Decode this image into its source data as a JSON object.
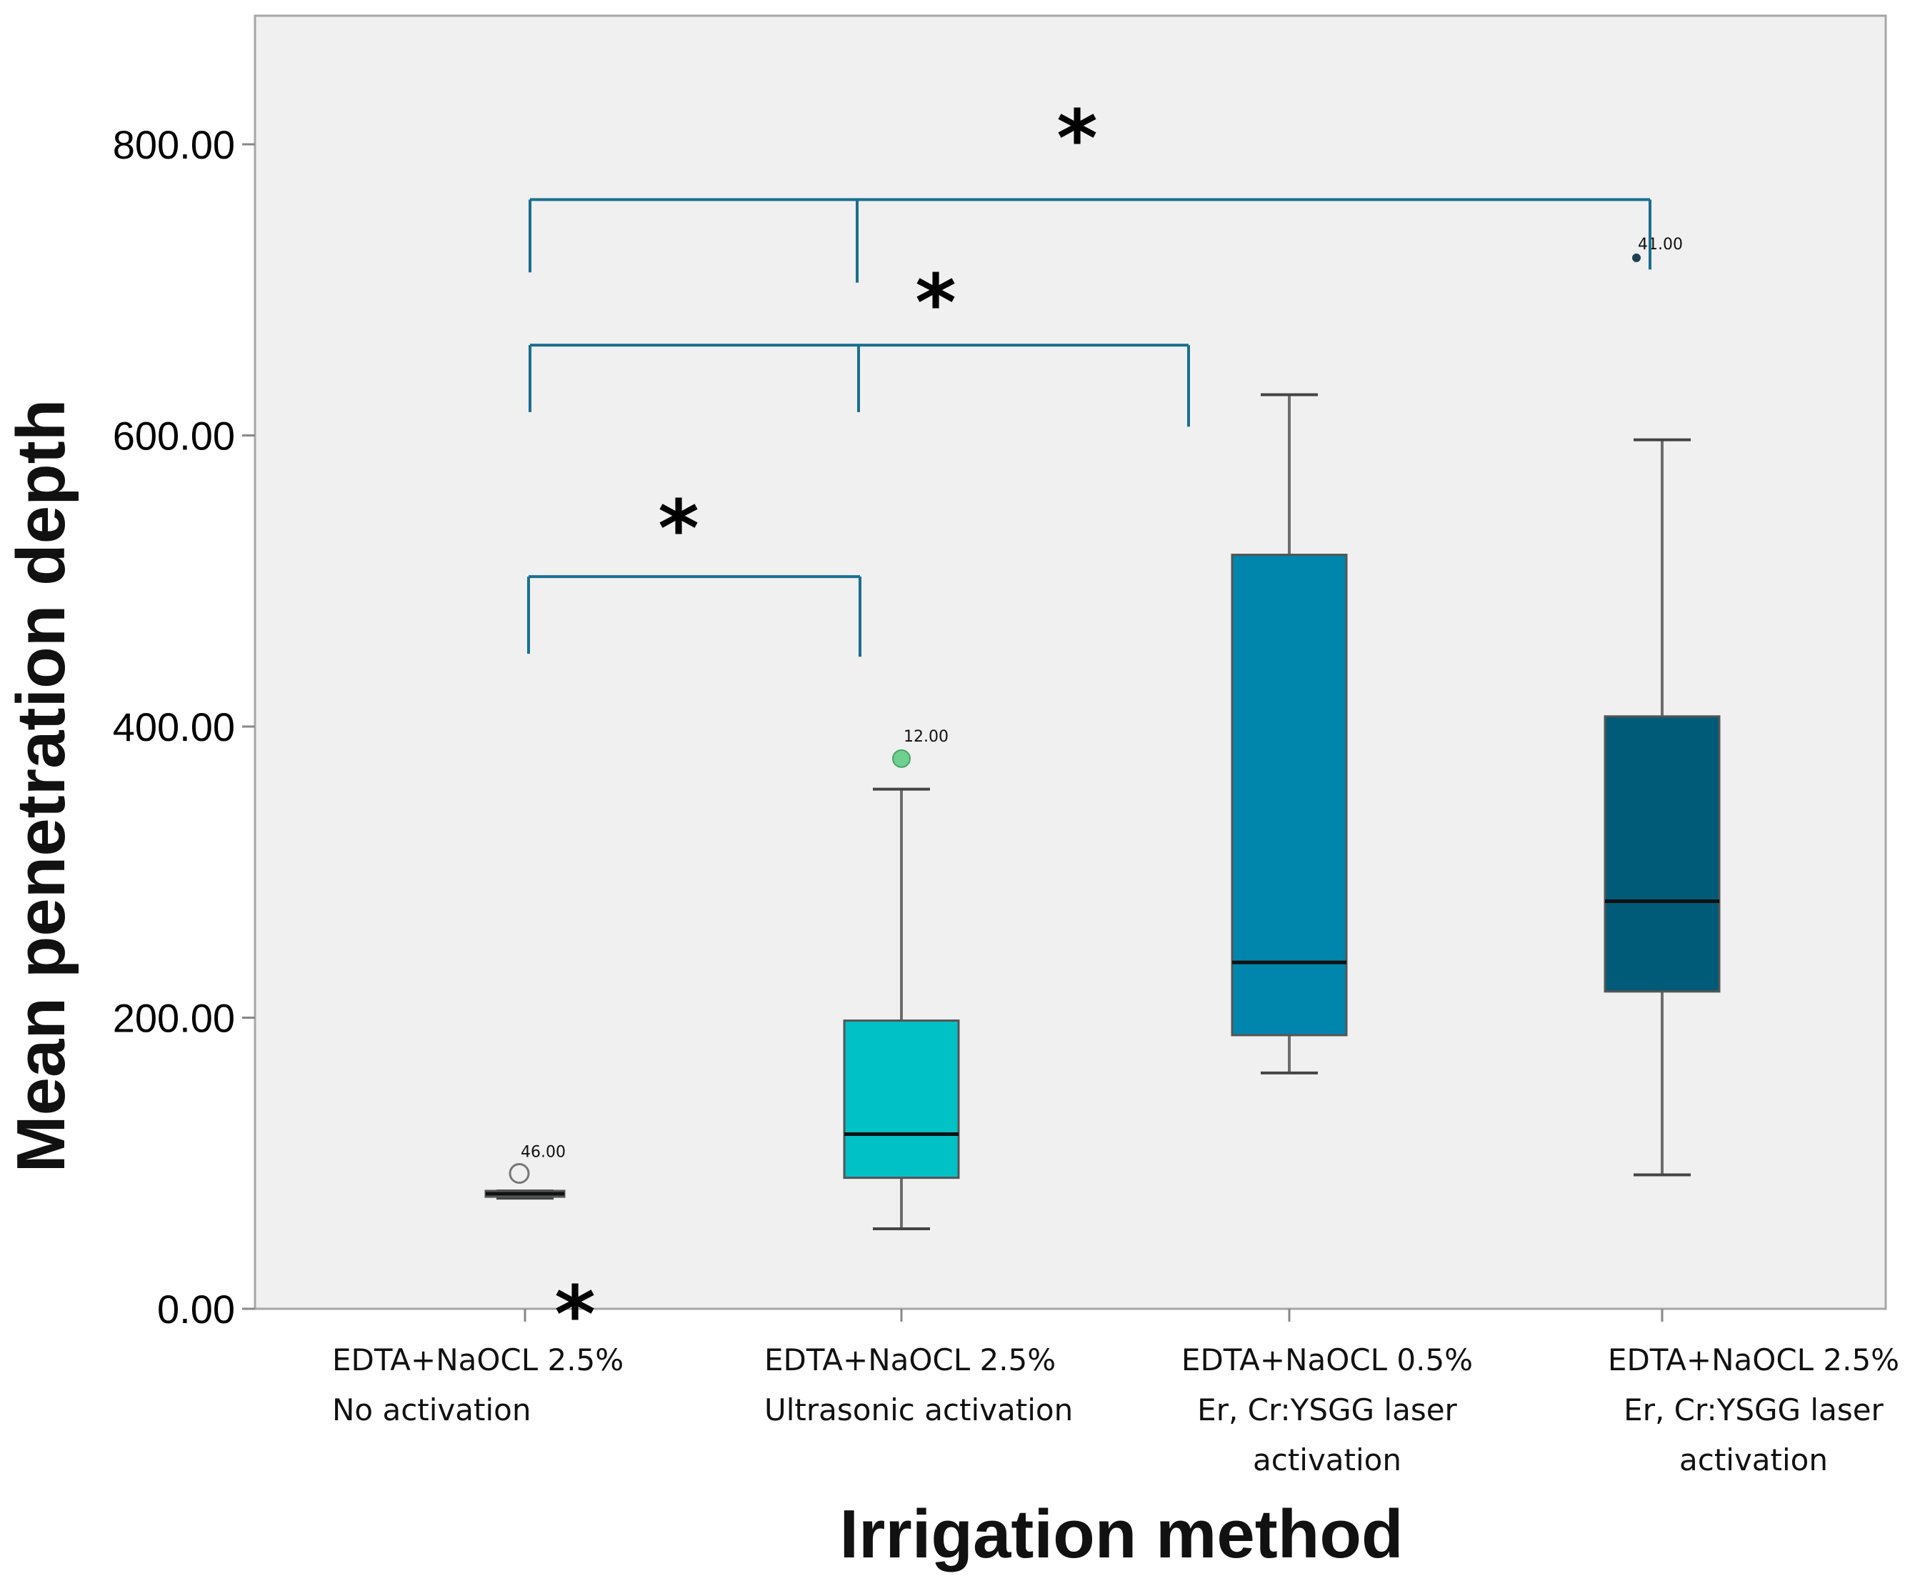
{
  "chart_data": {
    "type": "box",
    "xlabel": "Irrigation method",
    "ylabel": "Mean penetration depth",
    "ylim": [
      0,
      890
    ],
    "yticks": [
      {
        "value": 0,
        "label": "0.00"
      },
      {
        "value": 200,
        "label": "200.00"
      },
      {
        "value": 400,
        "label": "400.00"
      },
      {
        "value": 600,
        "label": "600.00"
      },
      {
        "value": 800,
        "label": "800.00"
      }
    ],
    "categories": [
      {
        "lines": [
          "EDTA+NaOCL 2.5%",
          "No activation"
        ]
      },
      {
        "lines": [
          "EDTA+NaOCL 2.5%",
          "Ultrasonic activation"
        ]
      },
      {
        "lines": [
          "EDTA+NaOCL 0.5%",
          "Er, Cr:YSGG laser",
          "activation"
        ]
      },
      {
        "lines": [
          "EDTA+NaOCL 2.5%",
          "Er, Cr:YSGG laser",
          "activation"
        ]
      }
    ],
    "boxes": [
      {
        "min": 76,
        "q1": 77,
        "median": 79,
        "q3": 81,
        "max": 81,
        "color": "#58b6cf",
        "outliers": [
          {
            "value": 93,
            "label": "46.00",
            "style": "open-circle"
          }
        ]
      },
      {
        "min": 55,
        "q1": 90,
        "median": 120,
        "q3": 198,
        "max": 357,
        "color": "#00c1c5",
        "outliers": [
          {
            "value": 378,
            "label": "12.00",
            "style": "green-circle"
          }
        ]
      },
      {
        "min": 162,
        "q1": 188,
        "median": 238,
        "q3": 518,
        "max": 628,
        "color": "#0086ad",
        "outliers": []
      },
      {
        "min": 92,
        "q1": 218,
        "median": 280,
        "q3": 407,
        "max": 597,
        "color": "#005b78",
        "outliers": [
          {
            "value": 722,
            "label": "41.00",
            "style": "small-dot"
          }
        ]
      }
    ],
    "significance": [
      {
        "groups": [
          1,
          2,
          4
        ],
        "level": 762,
        "symbol": "*"
      },
      {
        "groups": [
          1,
          2,
          3
        ],
        "level": 662,
        "symbol": "*"
      },
      {
        "groups": [
          1,
          2
        ],
        "level": 503,
        "symbol": "*"
      }
    ],
    "extra_annotation": {
      "symbol": "*",
      "group": 1
    }
  }
}
